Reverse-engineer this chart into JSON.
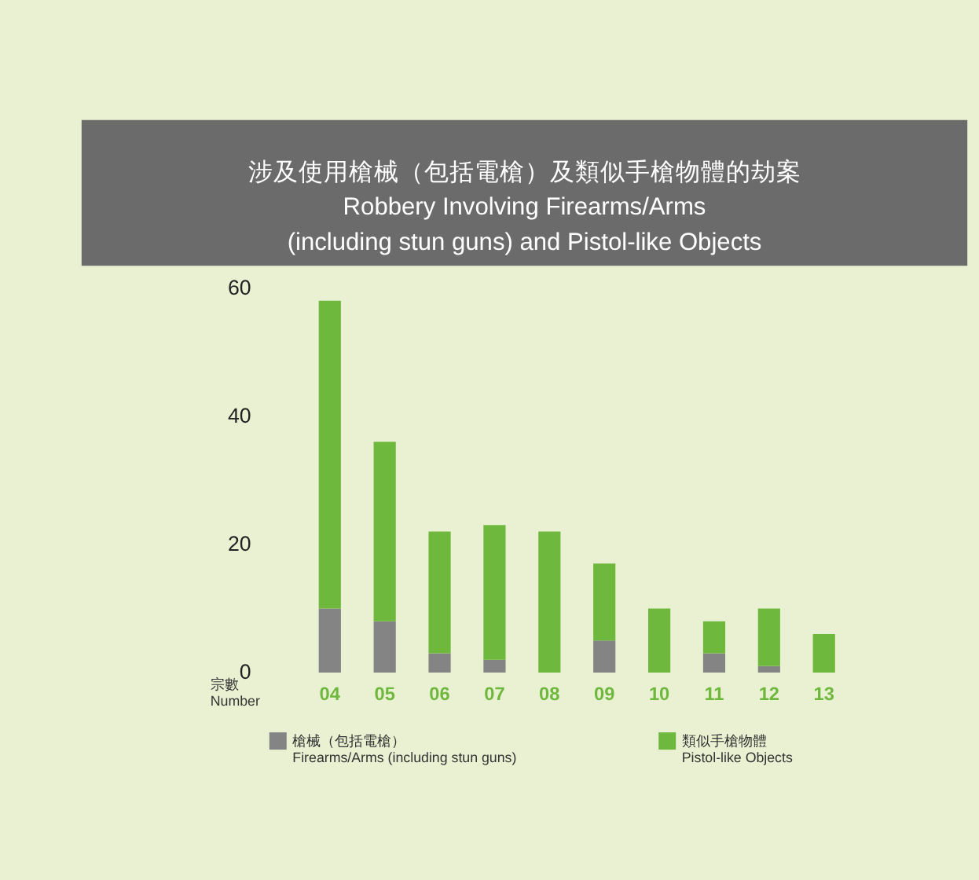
{
  "chart_data": {
    "type": "bar",
    "title": "涉及使用槍械（包括電槍）及類似手槍物體的劫案\nRobbery Involving Firearms/Arms\n(including stun guns) and Pistol-like Objects",
    "ylabel": "宗數\nNumber",
    "categories": [
      "04",
      "05",
      "06",
      "07",
      "08",
      "09",
      "10",
      "11",
      "12",
      "13"
    ],
    "stacked": true,
    "series": [
      {
        "name": "槍械（包括電槍）\nFirearms/Arms (including stun guns)",
        "color": "#848484",
        "values": [
          10,
          8,
          3,
          2,
          0,
          5,
          0,
          3,
          1,
          0
        ]
      },
      {
        "name": "類似手槍物體\nPistol-like Objects",
        "color": "#6fb83e",
        "values": [
          48,
          28,
          19,
          21,
          22,
          12,
          10,
          5,
          9,
          6
        ]
      }
    ],
    "ylim": [
      0,
      60
    ],
    "yticks": [
      0,
      20,
      40,
      60
    ],
    "grid": false,
    "legend": "bottom"
  }
}
